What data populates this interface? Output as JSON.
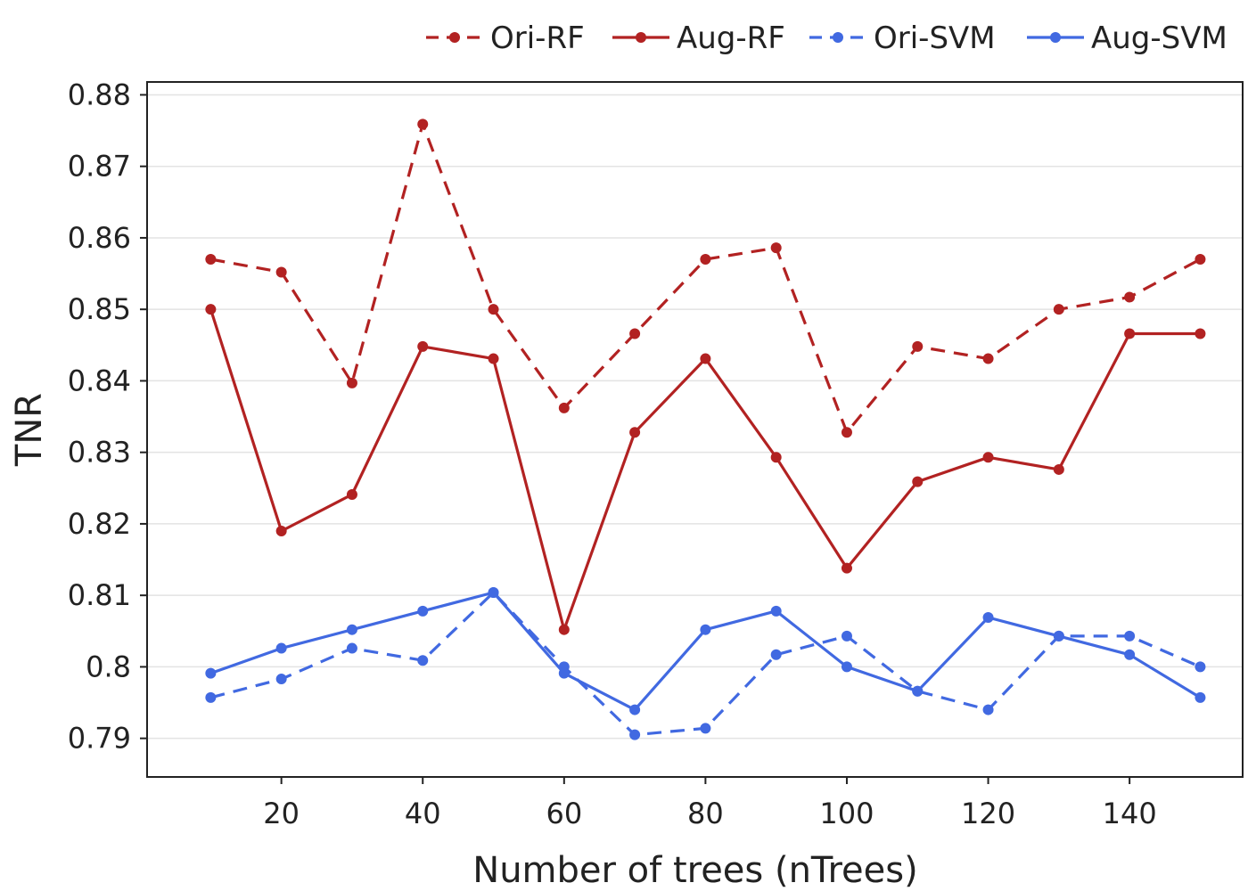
{
  "chart_data": {
    "type": "line",
    "title": "",
    "xlabel": "Number of trees (nTrees)",
    "ylabel": "TNR",
    "xlim": [
      1,
      156
    ],
    "ylim": [
      0.7846,
      0.8818
    ],
    "x_ticks": [
      20,
      40,
      60,
      80,
      100,
      120,
      140
    ],
    "x_tick_labels": [
      "20",
      "40",
      "60",
      "80",
      "100",
      "120",
      "140"
    ],
    "y_ticks": [
      0.79,
      0.8,
      0.81,
      0.82,
      0.83,
      0.84,
      0.85,
      0.86,
      0.87,
      0.88
    ],
    "y_tick_labels": [
      "0.79",
      "0.8",
      "0.81",
      "0.82",
      "0.83",
      "0.84",
      "0.85",
      "0.86",
      "0.87",
      "0.88"
    ],
    "grid": true,
    "legend_position": "top-right",
    "x": [
      10,
      20,
      30,
      40,
      50,
      60,
      70,
      80,
      90,
      100,
      110,
      120,
      130,
      140,
      150
    ],
    "series": [
      {
        "name": "Ori-RF",
        "color": "#b22222",
        "dashed": true,
        "values": [
          0.857,
          0.8552,
          0.8397,
          0.8759,
          0.85,
          0.8362,
          0.8466,
          0.857,
          0.8586,
          0.8328,
          0.8448,
          0.8431,
          0.85,
          0.8517,
          0.857
        ]
      },
      {
        "name": "Aug-RF",
        "color": "#b22222",
        "dashed": false,
        "values": [
          0.85,
          0.819,
          0.8241,
          0.8448,
          0.8431,
          0.8052,
          0.8328,
          0.8431,
          0.8293,
          0.8138,
          0.8259,
          0.8293,
          0.8276,
          0.8466,
          0.8466
        ]
      },
      {
        "name": "Ori-SVM",
        "color": "#4169e1",
        "dashed": true,
        "values": [
          0.7957,
          0.7983,
          0.8026,
          0.8009,
          0.8104,
          0.8,
          0.7905,
          0.7914,
          0.8017,
          0.8043,
          0.7966,
          0.794,
          0.8043,
          0.8043,
          0.8
        ]
      },
      {
        "name": "Aug-SVM",
        "color": "#4169e1",
        "dashed": false,
        "values": [
          0.7991,
          0.8026,
          0.8052,
          0.8078,
          0.8104,
          0.7991,
          0.794,
          0.8052,
          0.8078,
          0.8,
          0.7966,
          0.8069,
          0.8043,
          0.8017,
          0.7957
        ]
      }
    ]
  }
}
